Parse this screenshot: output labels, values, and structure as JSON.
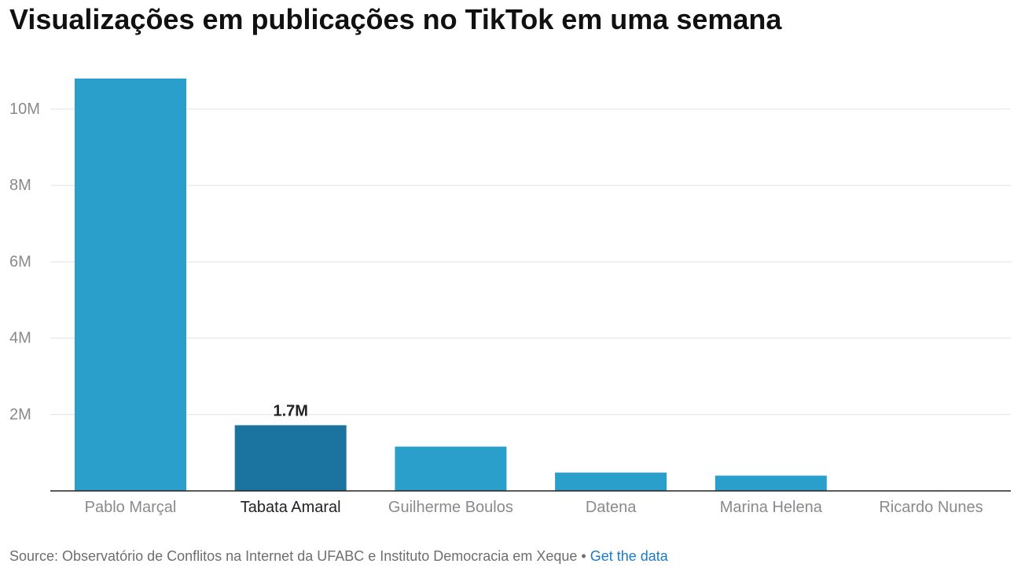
{
  "title": "Visualizações em publicações no TikTok em uma semana",
  "footer": {
    "source": "Source: Observatório de Conflitos na Internet da UFABC e Instituto Democracia em Xeque",
    "separator": "•",
    "link_label": "Get the data"
  },
  "colors": {
    "bar": "#2b9fcb",
    "highlight": "#1b74a0",
    "grid": "#e2e2e2",
    "axis": "#222222",
    "tick_label": "#8a8a8a",
    "highlight_label": "#222222"
  },
  "chart_data": {
    "type": "bar",
    "title": "Visualizações em publicações no TikTok em uma semana",
    "categories": [
      "Pablo Marçal",
      "Tabata Amaral",
      "Guilherme Boulos",
      "Datena",
      "Marina Helena",
      "Ricardo Nunes"
    ],
    "values": [
      10800000,
      1720000,
      1160000,
      480000,
      400000,
      0
    ],
    "highlight_index": 1,
    "data_labels": [
      "",
      "1.7M",
      "",
      "",
      "",
      ""
    ],
    "yticks": [
      2000000,
      4000000,
      6000000,
      8000000,
      10000000
    ],
    "ytick_labels": [
      "2M",
      "4M",
      "6M",
      "8M",
      "10M"
    ],
    "ylim": [
      0,
      10800000
    ],
    "grid": true,
    "xlabel": "",
    "ylabel": ""
  }
}
